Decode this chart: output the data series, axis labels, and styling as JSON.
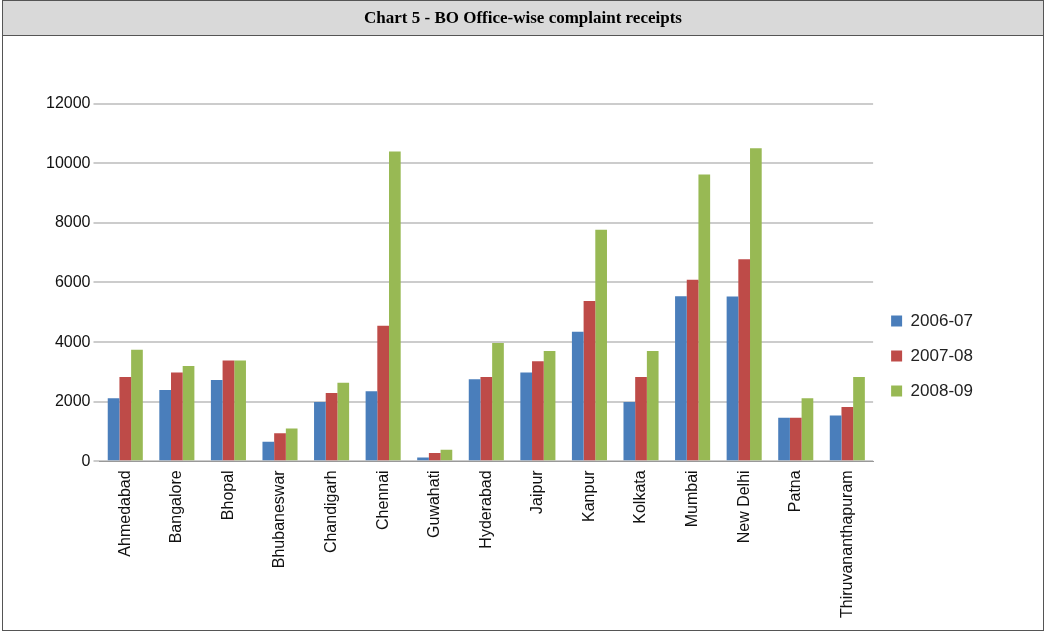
{
  "chart_data": {
    "type": "bar",
    "title": "Chart 5 - BO Office-wise complaint receipts",
    "categories": [
      "Ahmedabad",
      "Bangalore",
      "Bhopal",
      "Bhubaneswar",
      "Chandigarh",
      "Chennai",
      "Guwahati",
      "Hyderabad",
      "Jaipur",
      "Kanpur",
      "Kolkata",
      "Mumbai",
      "New Delhi",
      "Patna",
      "Thiruvananthapuram"
    ],
    "series": [
      {
        "name": "2006-07",
        "color": "#4a7ebb",
        "values": [
          2120,
          2390,
          2730,
          660,
          1990,
          2350,
          130,
          2750,
          2980,
          4350,
          1990,
          5540,
          5530,
          1460,
          1540
        ]
      },
      {
        "name": "2007-08",
        "color": "#be4b48",
        "values": [
          2830,
          2980,
          3380,
          940,
          2290,
          4550,
          280,
          2830,
          3360,
          5380,
          2830,
          6090,
          6780,
          1460,
          1820
        ]
      },
      {
        "name": "2008-09",
        "color": "#98b954",
        "values": [
          3740,
          3200,
          3380,
          1100,
          2640,
          10390,
          390,
          3970,
          3700,
          7770,
          3700,
          9620,
          10500,
          2120,
          2830
        ]
      }
    ],
    "ylim": [
      0,
      12000
    ],
    "yticks": [
      0,
      2000,
      4000,
      6000,
      8000,
      10000,
      12000
    ],
    "grid": "y",
    "legend": "right"
  }
}
